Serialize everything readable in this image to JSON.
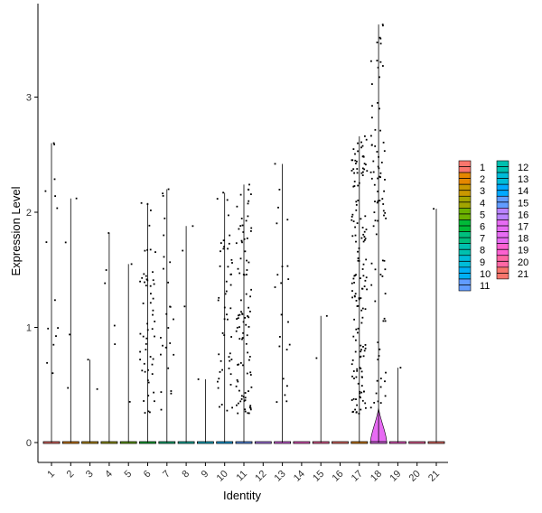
{
  "chart_data": {
    "type": "violin",
    "title": "",
    "xlabel": "Identity",
    "ylabel": "Expression Level",
    "ylim": [
      -0.15,
      3.8
    ],
    "yticks": [
      0,
      1,
      2,
      3
    ],
    "grid": false,
    "legend_position": "right",
    "legend_columns": 2,
    "categories": [
      "1",
      "2",
      "3",
      "4",
      "5",
      "6",
      "7",
      "8",
      "9",
      "10",
      "11",
      "12",
      "13",
      "14",
      "15",
      "16",
      "17",
      "18",
      "19",
      "20",
      "21"
    ],
    "colors": [
      "#F8766D",
      "#E58700",
      "#C99800",
      "#A3A500",
      "#6BB100",
      "#00BA38",
      "#00BF7D",
      "#00C0AF",
      "#00BCD8",
      "#00B0F6",
      "#619CFF",
      "#B983FF",
      "#E76BF3",
      "#FD61D1",
      "#FF67A4",
      "#F8766D",
      "#E58700",
      "#E76BF3",
      "#FD61D1",
      "#FF67A4",
      "#F8766D"
    ],
    "legend_colors": [
      "#F8766D",
      "#E58700",
      "#C99800",
      "#A3A500",
      "#6BB100",
      "#00BA38",
      "#00BF7D",
      "#00C0AF",
      "#00BCD8",
      "#00B0F6",
      "#619CFF",
      "#00C0AF",
      "#00BCD8",
      "#00A9FF",
      "#619CFF",
      "#B983FF",
      "#E76BF3",
      "#E76BF3",
      "#FD61D1",
      "#FF67A4",
      "#F8766D"
    ],
    "max_expression": [
      2.6,
      2.12,
      0.72,
      1.82,
      1.55,
      2.08,
      2.2,
      1.88,
      0.55,
      2.17,
      2.24,
      0,
      2.42,
      0,
      1.1,
      0,
      2.66,
      3.63,
      0.65,
      0,
      2.03
    ],
    "nonzero_cell_count": [
      14,
      4,
      2,
      5,
      2,
      55,
      25,
      3,
      1,
      50,
      95,
      0,
      22,
      0,
      2,
      0,
      150,
      85,
      1,
      0,
      1
    ],
    "violin_peak_value": [
      0,
      0,
      0,
      0,
      0,
      0,
      0,
      0,
      0,
      0,
      0,
      0,
      0,
      0,
      0,
      0,
      0,
      0.3,
      0,
      0,
      0
    ]
  }
}
